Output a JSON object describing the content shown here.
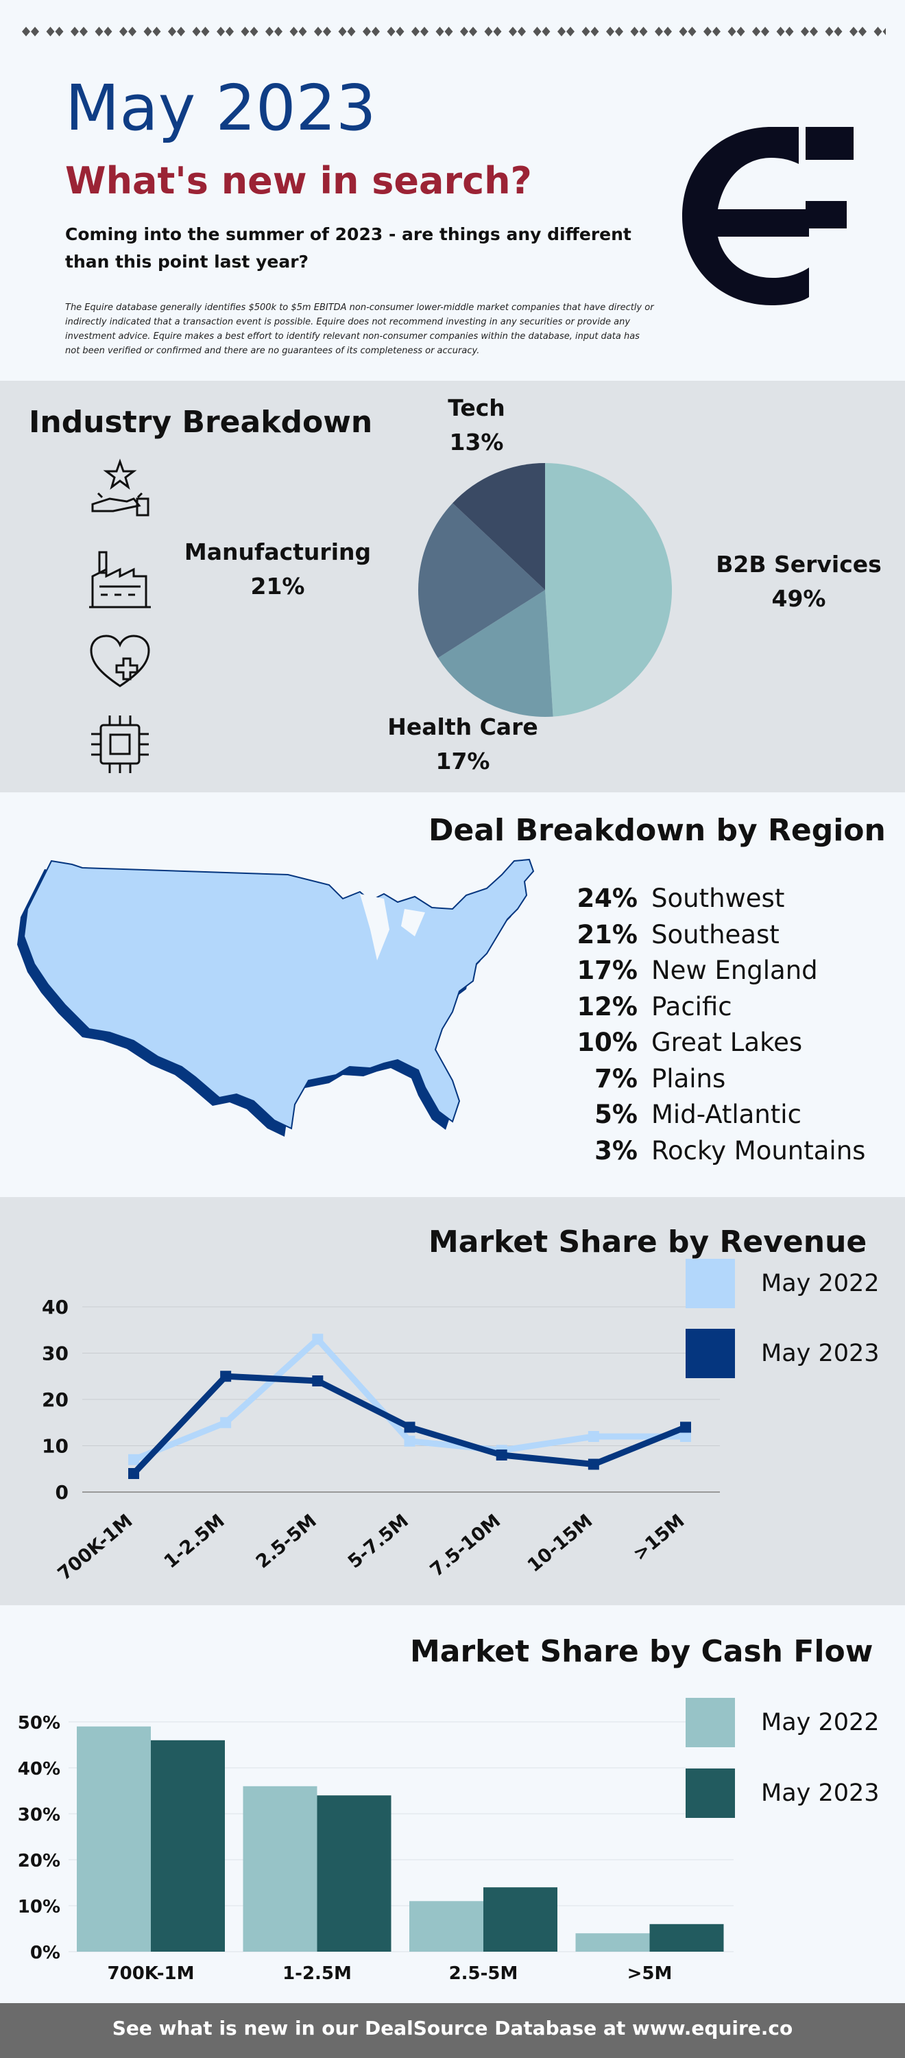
{
  "header": {
    "title": "May 2023",
    "subtitle": "What's new in search?",
    "intro": "Coming into the summer of 2023 - are things any different than this point last year?",
    "disclaimer": "The Equire database generally identifies $500k to $5m EBITDA non-consumer lower-middle market companies that have directly or indirectly indicated that a transaction event is possible. Equire does not recommend investing in any securities or provide any investment advice. Equire makes a best effort to identify relevant non-consumer companies within the database, input data has not been verified or confirmed and there are no guarantees of its completeness or accuracy."
  },
  "industry": {
    "title": "Industry Breakdown",
    "labels": {
      "tech": {
        "name": "Tech",
        "pct": "13%"
      },
      "manufacturing": {
        "name": "Manufacturing",
        "pct": "21%"
      },
      "b2b": {
        "name": "B2B Services",
        "pct": "49%"
      },
      "health": {
        "name": "Health Care",
        "pct": "17%"
      }
    },
    "icons": [
      "service-star-icon",
      "factory-icon",
      "heart-plus-icon",
      "chip-icon"
    ]
  },
  "region": {
    "title": "Deal Breakdown by Region",
    "rows": [
      {
        "pct": "24%",
        "name": "Southwest"
      },
      {
        "pct": "21%",
        "name": "Southeast"
      },
      {
        "pct": "17%",
        "name": "New England"
      },
      {
        "pct": "12%",
        "name": "Pacific"
      },
      {
        "pct": "10%",
        "name": "Great Lakes"
      },
      {
        "pct": "7%",
        "name": "Plains"
      },
      {
        "pct": "5%",
        "name": "Mid-Atlantic"
      },
      {
        "pct": "3%",
        "name": "Rocky Mountains"
      }
    ]
  },
  "revenue": {
    "title": "Market Share by Revenue",
    "legend": [
      "May 2022",
      "May 2023"
    ]
  },
  "cashflow": {
    "title": "Market Share by Cash Flow",
    "legend": [
      "May 2022",
      "May 2023"
    ]
  },
  "footer": {
    "text": "See what is new in our DealSource Database at www.equire.co"
  },
  "colors": {
    "navy": "#0f3d85",
    "maroon": "#9b2335",
    "light_blue": "#b3d7fb",
    "dark_blue": "#05367f",
    "teal_light": "#97c3c7",
    "teal_dark": "#225b5f"
  },
  "chart_data": [
    {
      "type": "pie",
      "categories": [
        "B2B Services",
        "Health Care",
        "Manufacturing",
        "Tech"
      ],
      "values": [
        49,
        17,
        21,
        13
      ],
      "colors": [
        "#99c6c8",
        "#729ba9",
        "#566f87",
        "#3a4a64"
      ]
    },
    {
      "type": "line",
      "title": "Market Share by Revenue",
      "categories": [
        "700K-1M",
        "1-2.5M",
        "2.5-5M",
        "5-7.5M",
        "7.5-10M",
        "10-15M",
        ">15M"
      ],
      "series": [
        {
          "name": "May 2022",
          "values": [
            7,
            15,
            33,
            11,
            9,
            12,
            12
          ],
          "color": "#b3d7fb"
        },
        {
          "name": "May 2023",
          "values": [
            4,
            25,
            24,
            14,
            8,
            6,
            14
          ],
          "color": "#05367f"
        }
      ],
      "yticks": [
        0,
        10,
        20,
        30,
        40
      ],
      "ylim": [
        0,
        40
      ],
      "grid": true,
      "legend": "right"
    },
    {
      "type": "bar",
      "title": "Market Share by Cash Flow",
      "categories": [
        "700K-1M",
        "1-2.5M",
        "2.5-5M",
        ">5M"
      ],
      "series": [
        {
          "name": "May 2022",
          "values": [
            49,
            36,
            11,
            4
          ],
          "color": "#97c3c7"
        },
        {
          "name": "May 2023",
          "values": [
            46,
            34,
            14,
            6
          ],
          "color": "#225b5f"
        }
      ],
      "yticks": [
        "0%",
        "10%",
        "20%",
        "30%",
        "40%",
        "50%"
      ],
      "ylim": [
        0,
        50
      ],
      "grid": true,
      "legend": "right"
    }
  ]
}
